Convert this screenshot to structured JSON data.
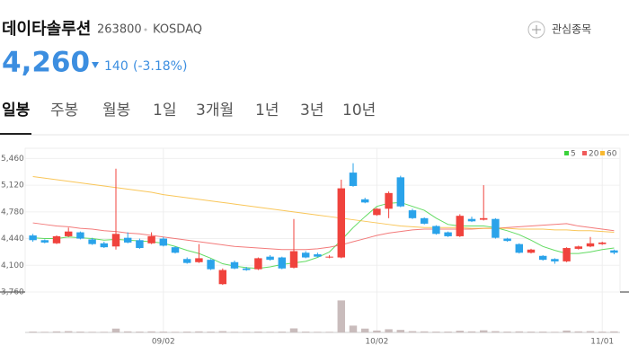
{
  "header": {
    "title": "데이타솔루션",
    "code": "263800",
    "market": "KOSDAQ",
    "watch_button": "관심종목",
    "price": "4,260",
    "change": "140",
    "change_pct": "(-3.18%)"
  },
  "tabs": [
    "일봉",
    "주봉",
    "월봉",
    "1일",
    "3개월",
    "1년",
    "3년",
    "10년"
  ],
  "chart_data": {
    "type": "candlestick",
    "categories": [
      null,
      null,
      null,
      null,
      null,
      null,
      null,
      null,
      null,
      null,
      null,
      "09/02",
      null,
      null,
      null,
      null,
      null,
      null,
      null,
      null,
      null,
      null,
      null,
      null,
      null,
      null,
      null,
      null,
      null,
      "10/02",
      null,
      null,
      null,
      null,
      null,
      null,
      null,
      null,
      null,
      null,
      null,
      null,
      null,
      null,
      null,
      null,
      null,
      null,
      "11/01",
      null
    ],
    "open": [
      4480,
      4420,
      4380,
      4470,
      4520,
      4430,
      4380,
      4340,
      4450,
      4420,
      4380,
      4440,
      4330,
      4180,
      4140,
      4170,
      3860,
      4140,
      4060,
      4050,
      4210,
      4200,
      4070,
      4260,
      4240,
      4200,
      4200,
      5280,
      4940,
      4740,
      4820,
      5220,
      4800,
      4700,
      4600,
      4520,
      4470,
      4690,
      4680,
      4690,
      4440,
      4370,
      4260,
      4220,
      4180,
      4150,
      4310,
      4340,
      4370,
      4290
    ],
    "high": [
      4500,
      4430,
      4480,
      4580,
      4530,
      4450,
      4400,
      5330,
      4520,
      4440,
      4520,
      4460,
      4340,
      4200,
      4370,
      4180,
      4060,
      4160,
      4080,
      4200,
      4230,
      4210,
      4690,
      4280,
      4260,
      4230,
      5190,
      5400,
      4960,
      4830,
      5040,
      5240,
      4820,
      4710,
      4610,
      4530,
      4750,
      4720,
      5120,
      4700,
      4450,
      4380,
      4310,
      4230,
      4190,
      4330,
      4350,
      4460,
      4400,
      4300
    ],
    "low": [
      4400,
      4380,
      4370,
      4460,
      4430,
      4360,
      4320,
      4300,
      4380,
      4310,
      4370,
      4340,
      4250,
      4120,
      4130,
      4040,
      3850,
      4050,
      4030,
      4040,
      4160,
      4050,
      4060,
      4190,
      4200,
      4190,
      4190,
      5100,
      4890,
      4730,
      4700,
      4840,
      4690,
      4620,
      4490,
      4460,
      4460,
      4650,
      4670,
      4440,
      4400,
      4250,
      4250,
      4160,
      4120,
      4140,
      4300,
      4330,
      4360,
      4240
    ],
    "close": [
      4420,
      4390,
      4470,
      4530,
      4440,
      4370,
      4330,
      4500,
      4390,
      4320,
      4470,
      4350,
      4260,
      4130,
      4190,
      4050,
      4040,
      4060,
      4040,
      4190,
      4170,
      4060,
      4280,
      4200,
      4210,
      4210,
      5080,
      5110,
      4900,
      4820,
      5020,
      4850,
      4700,
      4630,
      4500,
      4470,
      4730,
      4660,
      4700,
      4450,
      4410,
      4260,
      4300,
      4170,
      4150,
      4320,
      4340,
      4380,
      4390,
      4260
    ],
    "volume": [
      40000,
      30000,
      50000,
      60000,
      40000,
      30000,
      30000,
      180000,
      50000,
      40000,
      50000,
      40000,
      30000,
      40000,
      50000,
      40000,
      60000,
      30000,
      30000,
      40000,
      30000,
      40000,
      190000,
      40000,
      30000,
      30000,
      1500000,
      320000,
      180000,
      90000,
      150000,
      120000,
      60000,
      50000,
      40000,
      40000,
      80000,
      50000,
      100000,
      60000,
      40000,
      50000,
      40000,
      40000,
      30000,
      90000,
      50000,
      60000,
      40000,
      50000
    ],
    "volume_lim": [
      0,
      1600000
    ],
    "up_color": "#f0433d",
    "down_color": "#2aa3ea",
    "series": [
      {
        "name": "5",
        "color": "#3bd23b",
        "values": [
          4450,
          4440,
          4440,
          4460,
          4450,
          4440,
          4420,
          4430,
          4420,
          4410,
          4400,
          4380,
          4340,
          4290,
          4250,
          4190,
          4120,
          4090,
          4070,
          4060,
          4080,
          4110,
          4130,
          4150,
          4200,
          4270,
          4420,
          4580,
          4720,
          4850,
          4890,
          4900,
          4850,
          4800,
          4700,
          4620,
          4600,
          4600,
          4600,
          4580,
          4540,
          4490,
          4420,
          4340,
          4290,
          4250,
          4250,
          4270,
          4300,
          4320
        ]
      },
      {
        "name": "20",
        "color": "#f05a5a",
        "values": [
          4640,
          4620,
          4600,
          4590,
          4570,
          4560,
          4540,
          4530,
          4510,
          4500,
          4480,
          4460,
          4440,
          4420,
          4400,
          4380,
          4360,
          4340,
          4330,
          4320,
          4310,
          4300,
          4300,
          4300,
          4310,
          4330,
          4360,
          4400,
          4440,
          4480,
          4510,
          4530,
          4550,
          4560,
          4560,
          4560,
          4560,
          4560,
          4570,
          4570,
          4580,
          4590,
          4600,
          4610,
          4620,
          4630,
          4600,
          4580,
          4560,
          4540
        ]
      },
      {
        "name": "60",
        "color": "#f8b830",
        "values": [
          5230,
          5210,
          5190,
          5170,
          5150,
          5130,
          5110,
          5090,
          5070,
          5050,
          5030,
          5000,
          4980,
          4960,
          4940,
          4920,
          4900,
          4880,
          4860,
          4840,
          4820,
          4800,
          4780,
          4760,
          4740,
          4720,
          4700,
          4680,
          4660,
          4640,
          4620,
          4600,
          4590,
          4580,
          4580,
          4580,
          4580,
          4570,
          4570,
          4570,
          4570,
          4560,
          4560,
          4560,
          4550,
          4550,
          4540,
          4540,
          4530,
          4520
        ]
      }
    ],
    "ylim": [
      3760,
      5590
    ],
    "yticks": [
      {
        "value": 5460,
        "label": "5,460"
      },
      {
        "value": 5120,
        "label": "5,120"
      },
      {
        "value": 4780,
        "label": "4,780"
      },
      {
        "value": 4440,
        "label": "4,440"
      },
      {
        "value": 4100,
        "label": "4,100"
      },
      {
        "value": 3760,
        "label": "3,760"
      }
    ],
    "grid": true
  }
}
